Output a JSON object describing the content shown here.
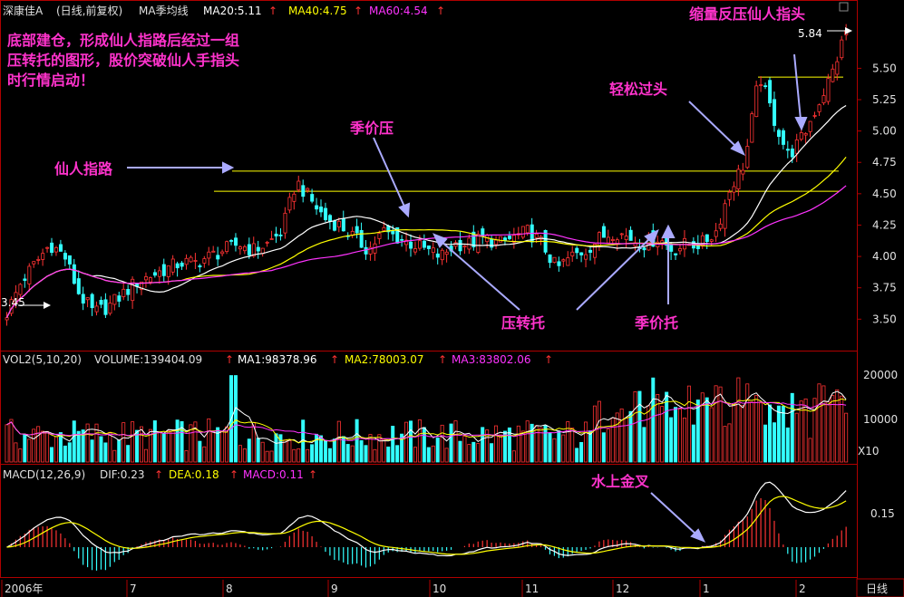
{
  "header": {
    "stock": "深康佳A",
    "mode": "(日线,前复权)",
    "ma_title": "MA季均线",
    "ma20": "MA20:5.11",
    "ma40": "MA40:4.75",
    "ma60": "MA60:4.54",
    "arrow": "↑"
  },
  "volume_header": {
    "title": "VOL2(5,10,20)",
    "volume": "VOLUME:139404.09",
    "ma1": "MA1:98378.96",
    "ma2": "MA2:78003.07",
    "ma3": "MA3:83802.06"
  },
  "macd_header": {
    "title": "MACD(12,26,9)",
    "dif": "DIF:0.23",
    "dea": "DEA:0.18",
    "macd": "MACD:0.11"
  },
  "annotations": {
    "intro": [
      "底部建仓，形成仙人指路后经过一组",
      "压转托的图形，股价突破仙人手指头",
      "时行情启动！"
    ],
    "xianren": "仙人指路",
    "jijiaya": "季价压",
    "qingsong": "轻松过头",
    "suoliang": "缩量反压仙人指头",
    "yazhuantuo": "压转托",
    "jijiatuo": "季价托",
    "shuishang": "水上金叉"
  },
  "labels": {
    "high_price": "5.84",
    "low_price": "3.45",
    "period": "日线",
    "vol_unit": "X10"
  },
  "colors": {
    "up": "#ff3333",
    "down": "#33ffff",
    "ma20": "#ffffff",
    "ma40": "#ffff00",
    "ma60": "#ff33ff",
    "annotation": "#ff33cc",
    "arrow": "#aaaaff",
    "frame": "#b00000"
  },
  "chart_data": [
    {
      "type": "candlestick",
      "title": "深康佳A (日线,前复权) MA季均线",
      "x_months": [
        "2006年",
        "7",
        "8",
        "9",
        "10",
        "11",
        "12",
        "1",
        "2"
      ],
      "y_ticks": [
        "3.50",
        "3.75",
        "4.00",
        "4.25",
        "4.50",
        "4.75",
        "5.00",
        "5.25",
        "5.50"
      ],
      "ylim": [
        3.3,
        5.9
      ],
      "low_marked": 3.45,
      "high_marked": 5.84,
      "resistance_levels": [
        4.68,
        4.52,
        5.43
      ],
      "series": [
        {
          "name": "MA20",
          "last": 5.11
        },
        {
          "name": "MA40",
          "last": 4.75
        },
        {
          "name": "MA60",
          "last": 4.54
        }
      ],
      "close_approx": [
        3.55,
        3.8,
        3.95,
        4.1,
        4.0,
        3.7,
        3.55,
        3.6,
        3.7,
        3.8,
        3.85,
        3.9,
        3.95,
        3.95,
        4.0,
        4.05,
        4.1,
        4.05,
        4.1,
        4.2,
        4.6,
        4.45,
        4.3,
        4.25,
        4.15,
        4.05,
        4.2,
        4.15,
        4.1,
        4.05,
        4.0,
        4.1,
        4.1,
        4.15,
        4.1,
        4.15,
        4.2,
        4.1,
        3.9,
        4.0,
        4.05,
        4.15,
        4.2,
        4.15,
        4.1,
        4.15,
        4.05,
        4.1,
        4.1,
        4.2,
        4.55,
        4.75,
        5.45,
        5.1,
        4.8,
        4.95,
        5.2,
        5.45,
        5.8
      ]
    },
    {
      "type": "bar",
      "title": "VOL2(5,10,20)",
      "y_ticks": [
        "10000",
        "20000"
      ],
      "unit": "X10",
      "series": [
        {
          "name": "VOLUME",
          "last": 139404.09
        },
        {
          "name": "MA1",
          "last": 98378.96
        },
        {
          "name": "MA2",
          "last": 78003.07
        },
        {
          "name": "MA3",
          "last": 83802.06
        }
      ]
    },
    {
      "type": "line",
      "title": "MACD(12,26,9)",
      "y_ticks": [
        "0.15"
      ],
      "series": [
        {
          "name": "DIF",
          "last": 0.23
        },
        {
          "name": "DEA",
          "last": 0.18
        },
        {
          "name": "MACD",
          "last": 0.11
        }
      ]
    }
  ]
}
